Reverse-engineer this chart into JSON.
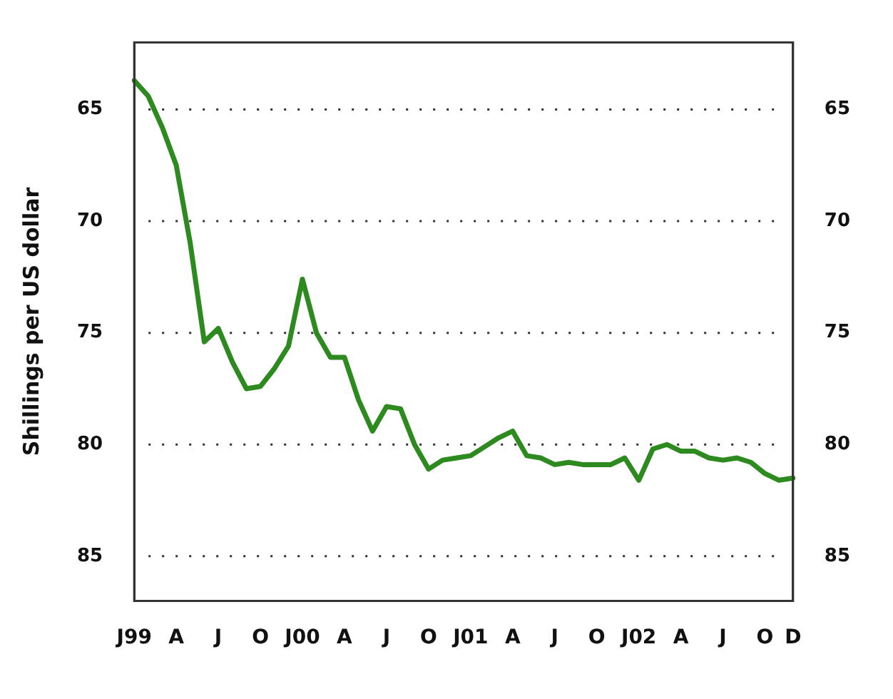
{
  "chart_data": {
    "type": "line",
    "ylabel": "Shillings per US dollar",
    "categories": [
      "J99",
      null,
      null,
      "A",
      null,
      null,
      "J",
      null,
      null,
      "O",
      null,
      null,
      "J00",
      null,
      null,
      "A",
      null,
      null,
      "J",
      null,
      null,
      "O",
      null,
      null,
      "J01",
      null,
      null,
      "A",
      null,
      null,
      "J",
      null,
      null,
      "O",
      null,
      null,
      "J02",
      null,
      null,
      "A",
      null,
      null,
      "J",
      null,
      null,
      "O",
      null,
      "D"
    ],
    "series": [
      {
        "color": "#2d8a1e",
        "values": [
          63.7,
          64.4,
          65.8,
          67.5,
          71.0,
          75.4,
          74.8,
          76.3,
          77.5,
          77.4,
          76.6,
          75.6,
          72.6,
          75.0,
          76.1,
          76.1,
          78.0,
          79.4,
          78.3,
          78.4,
          80.0,
          81.1,
          80.7,
          80.6,
          80.5,
          80.1,
          79.7,
          79.4,
          80.5,
          80.6,
          80.9,
          80.8,
          80.9,
          80.9,
          80.9,
          80.6,
          81.6,
          80.2,
          80.0,
          80.3,
          80.3,
          80.6,
          80.7,
          80.6,
          80.8,
          81.3,
          81.6,
          81.5
        ]
      }
    ],
    "ylim": [
      87,
      62
    ],
    "yticks": [
      65,
      70,
      75,
      80,
      85
    ],
    "y2lim": [
      87,
      62
    ],
    "y2ticks": [
      65,
      70,
      75,
      80,
      85
    ],
    "grid": "y",
    "legend": false,
    "marker": "none",
    "line_style": "solid"
  }
}
